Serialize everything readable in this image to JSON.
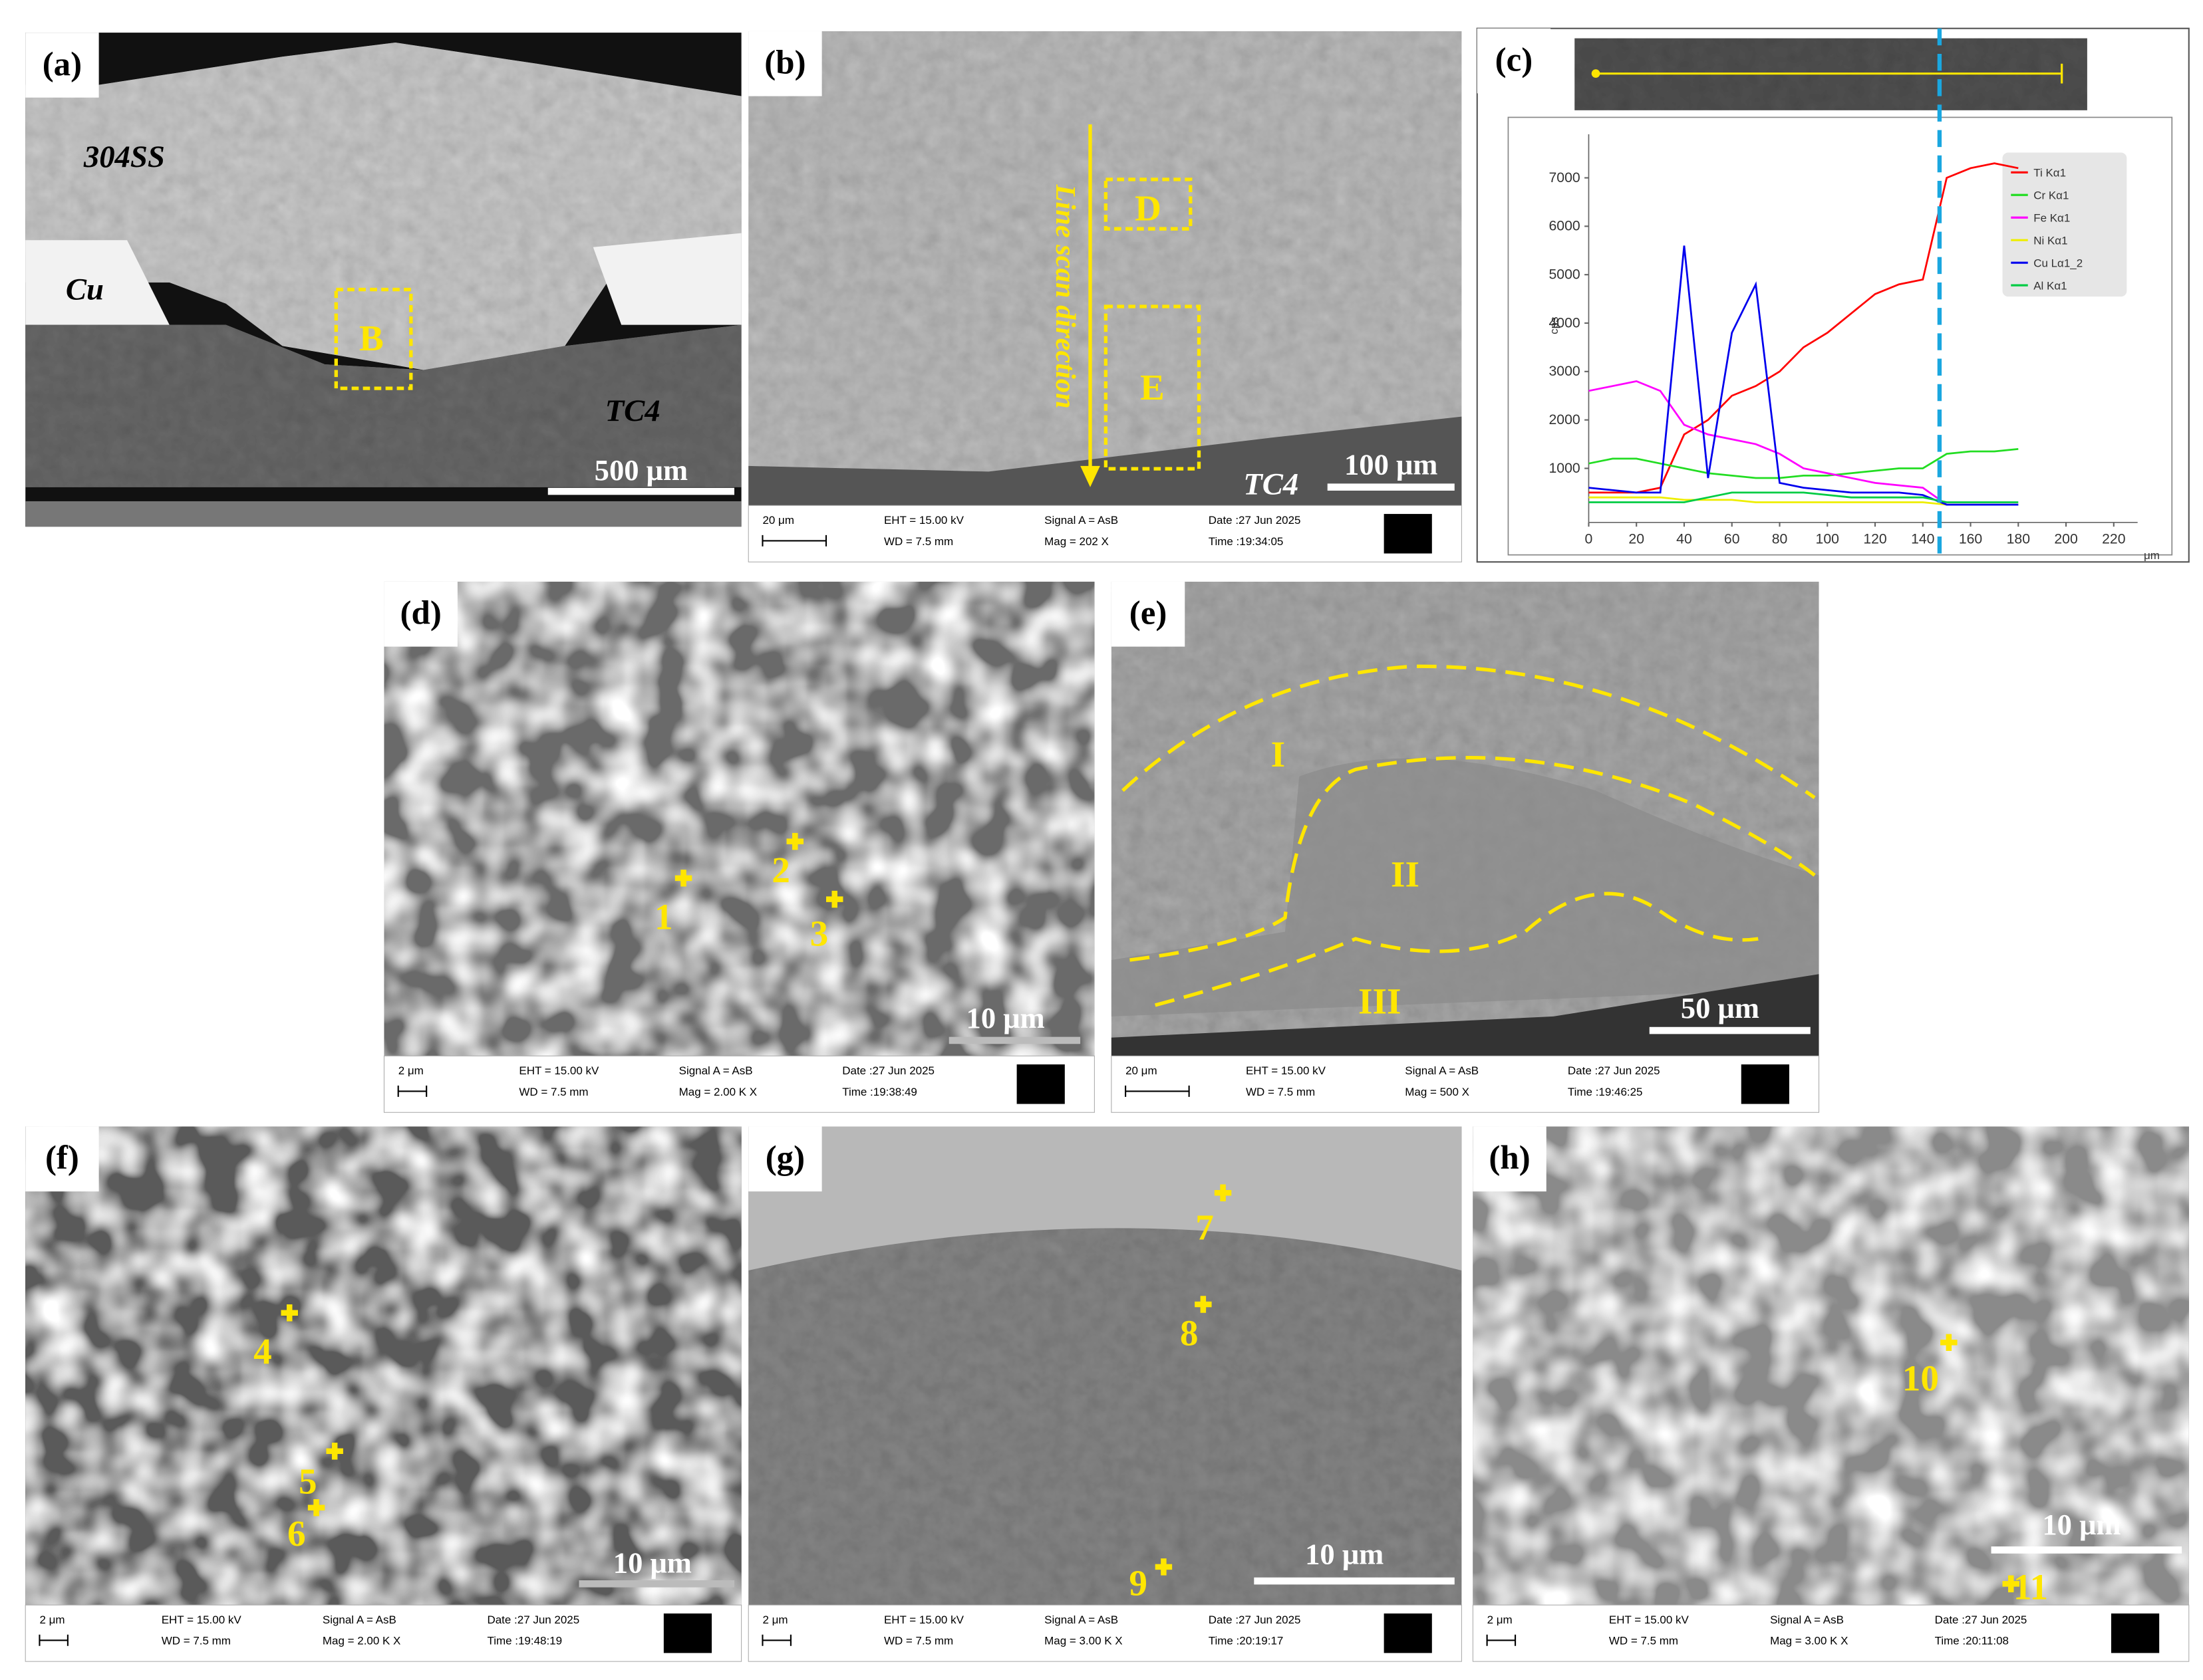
{
  "panels": {
    "a": {
      "label": "(a)",
      "annotations": [
        "304SS",
        "Cu",
        "B",
        "TC4"
      ],
      "scale_bar": "500 μm"
    },
    "b": {
      "label": "(b)",
      "annotations": [
        "Line scan direction",
        "D",
        "E",
        "TC4"
      ],
      "scale_bar": "100 μm",
      "info": {
        "bar": "20 μm",
        "eht": "EHT = 15.00 kV",
        "wd": "WD = 7.5 mm",
        "signal": "Signal A = AsB",
        "mag": "Mag =   202 X",
        "date": "Date :27 Jun 2025",
        "time": "Time :19:34:05",
        "logo": "ZEISS"
      }
    },
    "c": {
      "label": "(c)"
    },
    "d": {
      "label": "(d)",
      "annotations": [
        "1",
        "2",
        "3"
      ],
      "scale_bar": "10 μm",
      "info": {
        "bar": "2 μm",
        "eht": "EHT = 15.00 kV",
        "wd": "WD = 7.5 mm",
        "signal": "Signal A = AsB",
        "mag": "Mag =   2.00 K X",
        "date": "Date :27 Jun 2025",
        "time": "Time :19:38:49",
        "logo": "ZEISS"
      }
    },
    "e": {
      "label": "(e)",
      "annotations": [
        "I",
        "II",
        "III"
      ],
      "scale_bar": "50 μm",
      "info": {
        "bar": "20 μm",
        "eht": "EHT = 15.00 kV",
        "wd": "WD = 7.5 mm",
        "signal": "Signal A = AsB",
        "mag": "Mag =   500 X",
        "date": "Date :27 Jun 2025",
        "time": "Time :19:46:25",
        "logo": "ZEISS"
      }
    },
    "f": {
      "label": "(f)",
      "annotations": [
        "4",
        "5",
        "6"
      ],
      "scale_bar": "10 μm",
      "info": {
        "bar": "2 μm",
        "eht": "EHT = 15.00 kV",
        "wd": "WD = 7.5 mm",
        "signal": "Signal A = AsB",
        "mag": "Mag =   2.00 K X",
        "date": "Date :27 Jun 2025",
        "time": "Time :19:48:19",
        "logo": "ZEISS"
      }
    },
    "g": {
      "label": "(g)",
      "annotations": [
        "7",
        "8",
        "9"
      ],
      "scale_bar": "10 μm",
      "info": {
        "bar": "2 μm",
        "eht": "EHT = 15.00 kV",
        "wd": "WD = 7.5 mm",
        "signal": "Signal A = AsB",
        "mag": "Mag =   3.00 K X",
        "date": "Date :27 Jun 2025",
        "time": "Time :20:19:17",
        "logo": "ZEISS"
      }
    },
    "h": {
      "label": "(h)",
      "annotations": [
        "10",
        "11"
      ],
      "scale_bar": "10 μm",
      "info": {
        "bar": "2 μm",
        "eht": "EHT = 15.00 kV",
        "wd": "WD = 7.5 mm",
        "signal": "Signal A = AsB",
        "mag": "Mag =   3.00 K X",
        "date": "Date :27 Jun 2025",
        "time": "Time :20:11:08",
        "logo": "ZEISS"
      }
    }
  },
  "chart_data": {
    "type": "line",
    "x_label": "μm",
    "y_label": "cps",
    "x": [
      0,
      10,
      20,
      30,
      40,
      50,
      60,
      70,
      80,
      90,
      100,
      110,
      120,
      130,
      140,
      150,
      160,
      170,
      180
    ],
    "series": [
      {
        "name": "Ti Kα1",
        "color": "#ff0000",
        "values": [
          500,
          500,
          500,
          600,
          1700,
          2000,
          2500,
          2700,
          3000,
          3500,
          3800,
          4200,
          4600,
          4800,
          4900,
          7000,
          7200,
          7300,
          7200
        ]
      },
      {
        "name": "Cr Kα1",
        "color": "#22dd22",
        "values": [
          1100,
          1200,
          1200,
          1100,
          1000,
          900,
          850,
          800,
          800,
          850,
          850,
          900,
          950,
          1000,
          1000,
          1300,
          1350,
          1350,
          1400
        ]
      },
      {
        "name": "Fe Kα1",
        "color": "#ff00ff",
        "values": [
          2600,
          2700,
          2800,
          2600,
          1900,
          1700,
          1600,
          1500,
          1300,
          1000,
          900,
          800,
          700,
          650,
          600,
          250,
          250,
          250,
          250
        ]
      },
      {
        "name": "Ni Kα1",
        "color": "#eeee00",
        "values": [
          400,
          400,
          400,
          400,
          350,
          350,
          350,
          300,
          300,
          300,
          300,
          300,
          300,
          300,
          300,
          250,
          250,
          250,
          250
        ]
      },
      {
        "name": "Cu Lα1_2",
        "color": "#0000ee",
        "values": [
          600,
          550,
          500,
          500,
          5600,
          800,
          3800,
          4800,
          700,
          600,
          550,
          500,
          500,
          500,
          450,
          250,
          250,
          250,
          250
        ]
      },
      {
        "name": "Al Kα1",
        "color": "#00cc44",
        "values": [
          300,
          300,
          300,
          300,
          300,
          400,
          500,
          500,
          500,
          500,
          450,
          400,
          400,
          400,
          400,
          300,
          300,
          300,
          300
        ]
      }
    ],
    "boundary_x": 147,
    "xlim": [
      0,
      230
    ],
    "ylim": [
      0,
      7900
    ],
    "xticks": [
      0,
      20,
      40,
      60,
      80,
      100,
      120,
      140,
      160,
      180,
      200,
      220
    ],
    "yticks": [
      1000,
      2000,
      3000,
      4000,
      5000,
      6000,
      7000
    ]
  }
}
